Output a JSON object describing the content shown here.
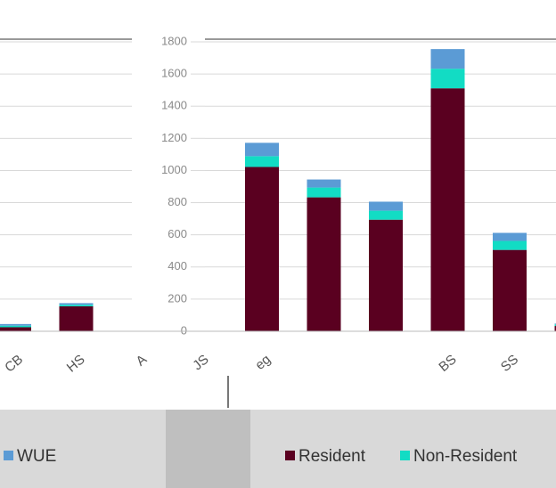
{
  "chart_data": {
    "type": "stacked_bar",
    "categories": [
      "CB",
      "HS",
      "A",
      "JS",
      "eg",
      null,
      null,
      "BS",
      "SS",
      null
    ],
    "series": [
      {
        "name": "Resident",
        "color": "#5a0020",
        "values": [
          25,
          155,
          0,
          0,
          1022,
          833,
          694,
          1511,
          506,
          33
        ]
      },
      {
        "name": "Non-Resident",
        "color": "#12dcc4",
        "values": [
          10,
          10,
          0,
          0,
          67,
          61,
          56,
          122,
          56,
          10
        ]
      },
      {
        "name": "WUE",
        "color": "#5b9bd5",
        "values": [
          10,
          10,
          0,
          0,
          83,
          50,
          56,
          122,
          50,
          5
        ]
      }
    ],
    "ylim": [
      0,
      1800
    ],
    "yticks": [
      0,
      200,
      400,
      600,
      800,
      1000,
      1200,
      1400,
      1600,
      1800
    ],
    "grid": true
  }
}
